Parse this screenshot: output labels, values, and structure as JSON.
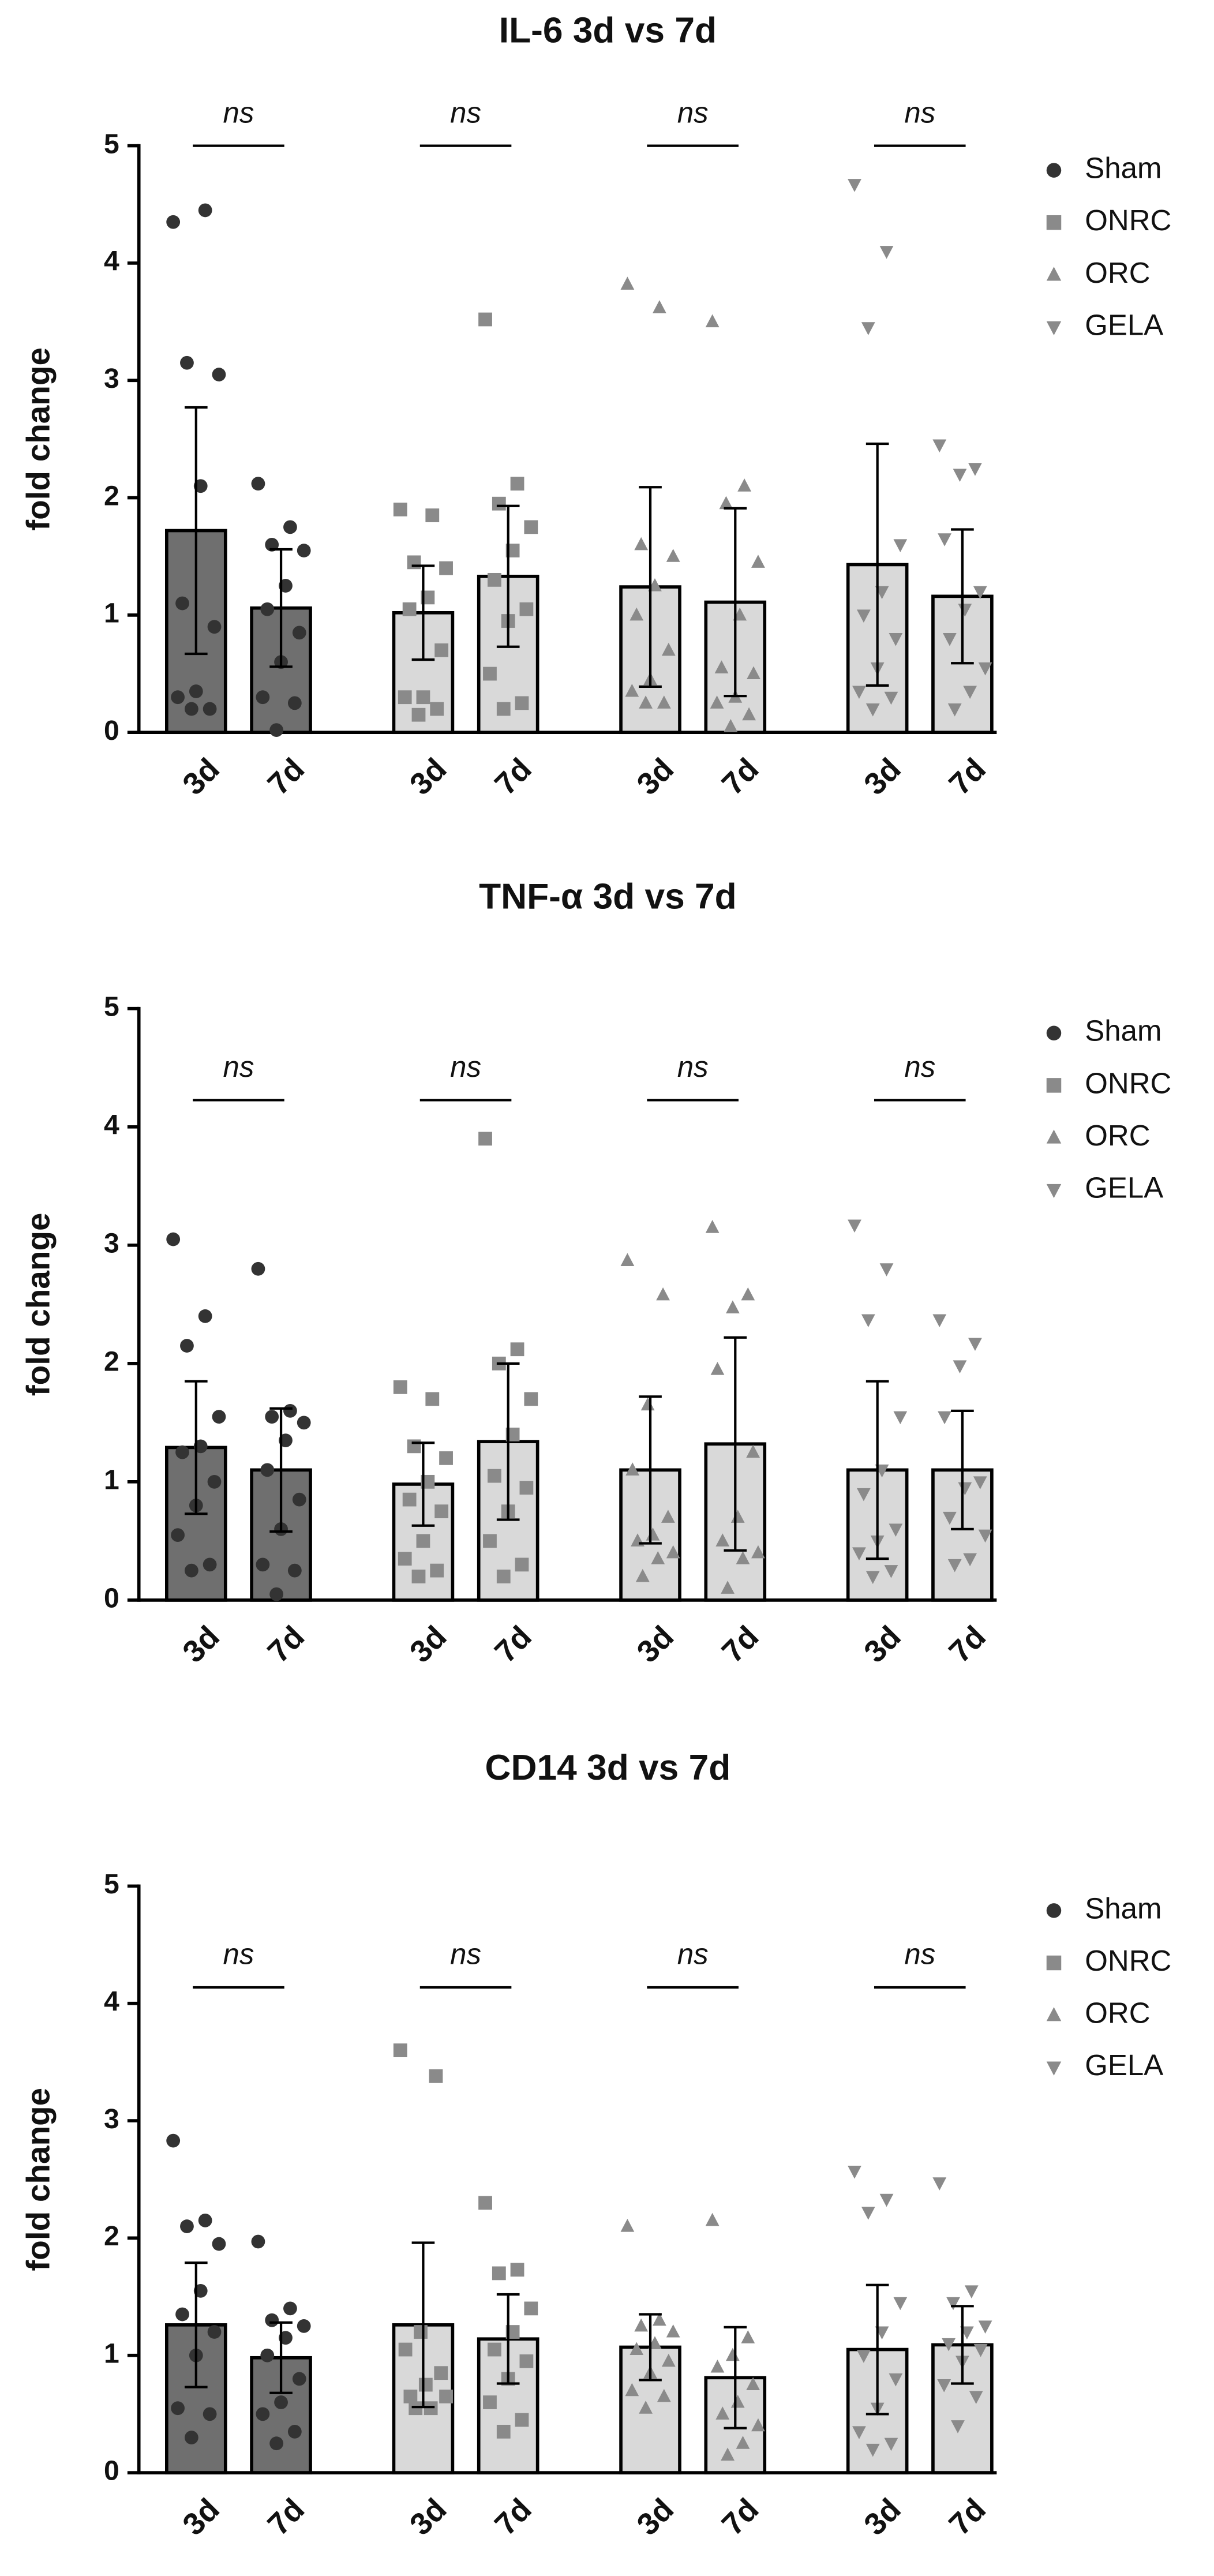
{
  "chart_data": [
    {
      "type": "bar",
      "title": "IL-6 3d vs 7d",
      "y_label": "fold change",
      "ylim": [
        0,
        5
      ],
      "yticks": [
        0,
        1,
        2,
        3,
        4,
        5
      ],
      "annotations": [
        "ns",
        "ns",
        "ns",
        "ns"
      ],
      "legend": "right",
      "series": [
        {
          "name": "Sham",
          "color": "#6f6f6f",
          "point_color": "#333333",
          "marker": "circle",
          "categories": [
            "3d",
            "7d"
          ],
          "values": [
            1.72,
            1.06
          ],
          "errors": [
            1.05,
            0.5
          ],
          "points": [
            [
              4.35,
              4.45,
              3.15,
              3.05,
              2.1,
              1.1,
              0.9,
              0.35,
              0.3,
              0.2,
              0.2
            ],
            [
              2.12,
              1.75,
              1.6,
              1.55,
              1.25,
              1.05,
              0.85,
              0.6,
              0.3,
              0.25,
              0.02
            ]
          ]
        },
        {
          "name": "ONRC",
          "color": "#d9d9d9",
          "point_color": "#8a8a8a",
          "marker": "square",
          "categories": [
            "3d",
            "7d"
          ],
          "values": [
            1.02,
            1.33
          ],
          "errors": [
            0.4,
            0.6
          ],
          "points": [
            [
              1.9,
              1.85,
              1.45,
              1.4,
              1.15,
              1.05,
              0.7,
              0.3,
              0.3,
              0.2,
              0.15
            ],
            [
              3.52,
              2.12,
              1.95,
              1.75,
              1.55,
              1.3,
              1.05,
              0.95,
              0.5,
              0.25,
              0.2
            ]
          ]
        },
        {
          "name": "ORC",
          "color": "#d9d9d9",
          "point_color": "#8a8a8a",
          "marker": "triangle-up",
          "categories": [
            "3d",
            "7d"
          ],
          "values": [
            1.24,
            1.11
          ],
          "errors": [
            0.85,
            0.8
          ],
          "points": [
            [
              3.82,
              3.62,
              1.6,
              1.5,
              1.25,
              1.0,
              0.7,
              0.45,
              0.35,
              0.25,
              0.25
            ],
            [
              3.5,
              2.1,
              1.95,
              1.45,
              1.0,
              0.55,
              0.5,
              0.3,
              0.25,
              0.15,
              0.05
            ]
          ]
        },
        {
          "name": "GELA",
          "color": "#d9d9d9",
          "point_color": "#8a8a8a",
          "marker": "triangle-down",
          "categories": [
            "3d",
            "7d"
          ],
          "values": [
            1.43,
            1.16
          ],
          "errors": [
            1.03,
            0.57
          ],
          "points": [
            [
              4.67,
              4.1,
              3.45,
              1.6,
              1.2,
              1.0,
              0.8,
              0.55,
              0.35,
              0.3,
              0.2
            ],
            [
              2.45,
              2.25,
              2.2,
              1.65,
              1.2,
              1.05,
              0.8,
              0.55,
              0.35,
              0.2
            ]
          ]
        }
      ]
    },
    {
      "type": "bar",
      "title": "TNF-α 3d vs 7d",
      "y_label": "fold change",
      "ylim": [
        0,
        5
      ],
      "yticks": [
        0,
        1,
        2,
        3,
        4,
        5
      ],
      "annotations": [
        "ns",
        "ns",
        "ns",
        "ns"
      ],
      "legend": "right",
      "series": [
        {
          "name": "Sham",
          "color": "#6f6f6f",
          "point_color": "#333333",
          "marker": "circle",
          "categories": [
            "3d",
            "7d"
          ],
          "values": [
            1.29,
            1.1
          ],
          "errors": [
            0.56,
            0.52
          ],
          "points": [
            [
              3.05,
              2.4,
              2.15,
              1.55,
              1.3,
              1.25,
              1.0,
              0.8,
              0.55,
              0.3,
              0.25
            ],
            [
              2.8,
              1.6,
              1.55,
              1.5,
              1.35,
              1.1,
              0.85,
              0.6,
              0.3,
              0.25,
              0.05
            ]
          ]
        },
        {
          "name": "ONRC",
          "color": "#d9d9d9",
          "point_color": "#8a8a8a",
          "marker": "square",
          "categories": [
            "3d",
            "7d"
          ],
          "values": [
            0.98,
            1.34
          ],
          "errors": [
            0.35,
            0.66
          ],
          "points": [
            [
              1.8,
              1.7,
              1.3,
              1.2,
              1.0,
              0.85,
              0.75,
              0.5,
              0.35,
              0.25,
              0.2
            ],
            [
              3.9,
              2.12,
              2.0,
              1.7,
              1.4,
              1.05,
              0.95,
              0.75,
              0.5,
              0.3,
              0.2
            ]
          ]
        },
        {
          "name": "ORC",
          "color": "#d9d9d9",
          "point_color": "#8a8a8a",
          "marker": "triangle-up",
          "categories": [
            "3d",
            "7d"
          ],
          "values": [
            1.1,
            1.32
          ],
          "errors": [
            0.62,
            0.9
          ],
          "points": [
            [
              2.87,
              2.58,
              1.65,
              1.1,
              0.7,
              0.55,
              0.5,
              0.4,
              0.35,
              0.2
            ],
            [
              3.15,
              2.58,
              2.47,
              1.95,
              1.25,
              0.7,
              0.5,
              0.4,
              0.35,
              0.1
            ]
          ]
        },
        {
          "name": "GELA",
          "color": "#d9d9d9",
          "point_color": "#8a8a8a",
          "marker": "triangle-down",
          "categories": [
            "3d",
            "7d"
          ],
          "values": [
            1.1,
            1.1
          ],
          "errors": [
            0.75,
            0.5
          ],
          "points": [
            [
              3.17,
              2.8,
              2.37,
              1.55,
              1.1,
              0.9,
              0.6,
              0.5,
              0.4,
              0.25,
              0.2
            ],
            [
              2.37,
              2.17,
              1.98,
              1.55,
              1.0,
              0.95,
              0.7,
              0.55,
              0.35,
              0.3
            ]
          ]
        }
      ]
    },
    {
      "type": "bar",
      "title": "CD14 3d vs 7d",
      "y_label": "fold change",
      "ylim": [
        0,
        5
      ],
      "yticks": [
        0,
        1,
        2,
        3,
        4,
        5
      ],
      "annotations": [
        "ns",
        "ns",
        "ns",
        "ns"
      ],
      "legend": "right",
      "series": [
        {
          "name": "Sham",
          "color": "#6f6f6f",
          "point_color": "#333333",
          "marker": "circle",
          "categories": [
            "3d",
            "7d"
          ],
          "values": [
            1.26,
            0.98
          ],
          "errors": [
            0.53,
            0.3
          ],
          "points": [
            [
              2.83,
              2.15,
              2.1,
              1.95,
              1.55,
              1.35,
              1.2,
              1.0,
              0.55,
              0.5,
              0.3
            ],
            [
              1.97,
              1.4,
              1.3,
              1.25,
              1.15,
              1.0,
              0.8,
              0.6,
              0.5,
              0.35,
              0.25
            ]
          ]
        },
        {
          "name": "ONRC",
          "color": "#d9d9d9",
          "point_color": "#8a8a8a",
          "marker": "square",
          "categories": [
            "3d",
            "7d"
          ],
          "values": [
            1.26,
            1.14
          ],
          "errors": [
            0.7,
            0.38
          ],
          "points": [
            [
              3.6,
              3.38,
              1.2,
              1.05,
              0.85,
              0.75,
              0.65,
              0.65,
              0.55,
              0.55
            ],
            [
              2.3,
              1.73,
              1.7,
              1.4,
              1.2,
              1.05,
              0.95,
              0.8,
              0.6,
              0.45,
              0.35
            ]
          ]
        },
        {
          "name": "ORC",
          "color": "#d9d9d9",
          "point_color": "#8a8a8a",
          "marker": "triangle-up",
          "categories": [
            "3d",
            "7d"
          ],
          "values": [
            1.07,
            0.81
          ],
          "errors": [
            0.28,
            0.43
          ],
          "points": [
            [
              2.1,
              1.3,
              1.25,
              1.2,
              1.1,
              1.05,
              0.95,
              0.85,
              0.7,
              0.65,
              0.55
            ],
            [
              2.15,
              1.15,
              1.0,
              0.9,
              0.75,
              0.6,
              0.5,
              0.4,
              0.25,
              0.15
            ]
          ]
        },
        {
          "name": "GELA",
          "color": "#d9d9d9",
          "point_color": "#8a8a8a",
          "marker": "triangle-down",
          "categories": [
            "3d",
            "7d"
          ],
          "values": [
            1.05,
            1.09
          ],
          "errors": [
            0.55,
            0.33
          ],
          "points": [
            [
              2.57,
              2.33,
              2.22,
              1.45,
              1.2,
              1.0,
              0.8,
              0.55,
              0.35,
              0.25,
              0.2
            ],
            [
              2.47,
              1.55,
              1.45,
              1.25,
              1.2,
              1.1,
              1.05,
              0.95,
              0.75,
              0.65,
              0.4
            ]
          ]
        }
      ]
    }
  ]
}
